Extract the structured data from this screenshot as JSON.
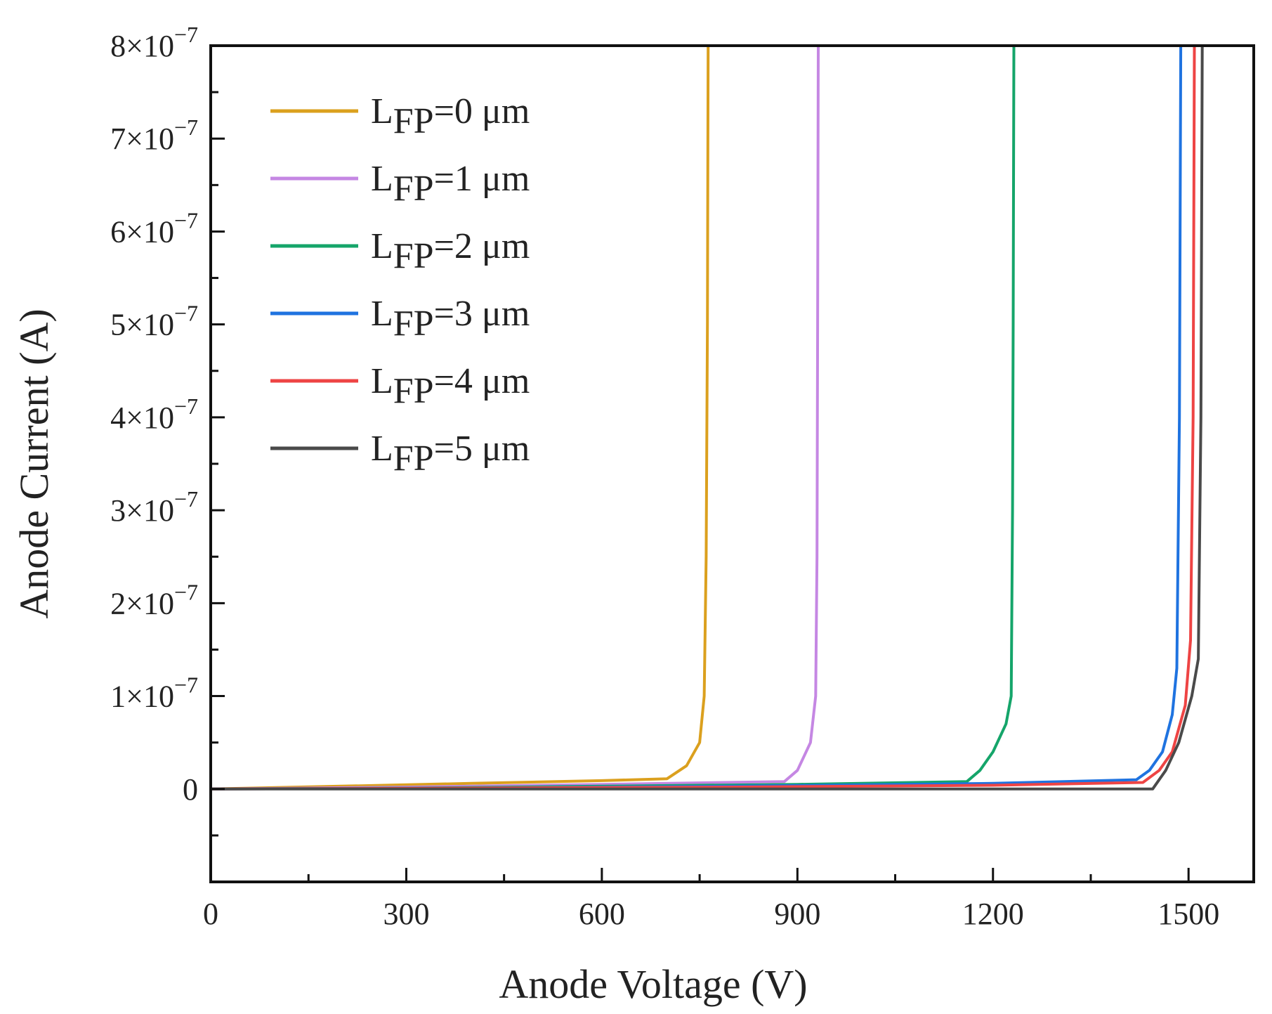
{
  "chart_data": {
    "type": "line",
    "title": "",
    "xlabel": "Anode Voltage (V)",
    "ylabel": "Anode Current (A)",
    "xlim": [
      0,
      1600
    ],
    "ylim": [
      -1e-07,
      8e-07
    ],
    "xticks": [
      0,
      300,
      600,
      900,
      1200,
      1500
    ],
    "xtick_labels": [
      "0",
      "300",
      "600",
      "900",
      "1200",
      "1500"
    ],
    "yticks": [
      0,
      1e-07,
      2e-07,
      3e-07,
      4e-07,
      5e-07,
      6e-07,
      7e-07,
      8e-07
    ],
    "ytick_labels": [
      {
        "mantissa": "0",
        "exponent": ""
      },
      {
        "mantissa": "1×10",
        "exponent": "−7"
      },
      {
        "mantissa": "2×10",
        "exponent": "−7"
      },
      {
        "mantissa": "3×10",
        "exponent": "−7"
      },
      {
        "mantissa": "4×10",
        "exponent": "−7"
      },
      {
        "mantissa": "5×10",
        "exponent": "−7"
      },
      {
        "mantissa": "6×10",
        "exponent": "−7"
      },
      {
        "mantissa": "7×10",
        "exponent": "−7"
      },
      {
        "mantissa": "8×10",
        "exponent": "−7"
      }
    ],
    "legend_position": "top-left",
    "series": [
      {
        "name": "LFP=0 μm",
        "base": "L",
        "sub": "FP",
        "rest": "=0 μm",
        "color": "#DBA01E",
        "x": [
          0,
          200,
          400,
          600,
          700,
          730,
          750,
          757,
          760,
          762,
          763
        ],
        "y": [
          0,
          3e-09,
          6e-09,
          9e-09,
          1.1e-08,
          2.5e-08,
          5e-08,
          1e-07,
          2.5e-07,
          5e-07,
          8e-07
        ]
      },
      {
        "name": "LFP=1 μm",
        "base": "L",
        "sub": "FP",
        "rest": "=1 μm",
        "color": "#C587E3",
        "x": [
          0,
          300,
          600,
          880,
          900,
          920,
          928,
          930,
          931,
          932
        ],
        "y": [
          0,
          2e-09,
          5e-09,
          8e-09,
          2e-08,
          5e-08,
          1e-07,
          2.5e-07,
          5e-07,
          8e-07
        ]
      },
      {
        "name": "LFP=2 μm",
        "base": "L",
        "sub": "FP",
        "rest": "=2 μm",
        "color": "#15A56A",
        "x": [
          0,
          300,
          600,
          900,
          1160,
          1180,
          1200,
          1220,
          1228,
          1230,
          1231,
          1232
        ],
        "y": [
          0,
          1e-09,
          3e-09,
          5e-09,
          8e-09,
          2e-08,
          4e-08,
          7e-08,
          1e-07,
          3e-07,
          5e-07,
          8e-07
        ]
      },
      {
        "name": "LFP=3 μm",
        "base": "L",
        "sub": "FP",
        "rest": "=3 μm",
        "color": "#1F73E0",
        "x": [
          0,
          400,
          800,
          1200,
          1420,
          1440,
          1460,
          1475,
          1482,
          1486,
          1488
        ],
        "y": [
          0,
          1e-09,
          3e-09,
          6e-09,
          1e-08,
          2e-08,
          4e-08,
          8e-08,
          1.3e-07,
          4e-07,
          8e-07
        ]
      },
      {
        "name": "LFP=4 μm",
        "base": "L",
        "sub": "FP",
        "rest": "=4 μm",
        "color": "#EE4444",
        "x": [
          0,
          400,
          800,
          1200,
          1430,
          1455,
          1475,
          1495,
          1503,
          1507,
          1509
        ],
        "y": [
          0,
          1e-09,
          2e-09,
          4e-09,
          7e-09,
          2e-08,
          4e-08,
          9e-08,
          1.6e-07,
          4e-07,
          8e-07
        ]
      },
      {
        "name": "LFP=5 μm",
        "base": "L",
        "sub": "FP",
        "rest": "=5 μm",
        "color": "#4A4A4A",
        "x": [
          0,
          400,
          800,
          1200,
          1445,
          1465,
          1485,
          1505,
          1515,
          1519,
          1521
        ],
        "y": [
          0,
          0,
          0,
          0,
          0,
          2e-08,
          5e-08,
          1e-07,
          1.4e-07,
          4e-07,
          8e-07
        ]
      }
    ]
  }
}
